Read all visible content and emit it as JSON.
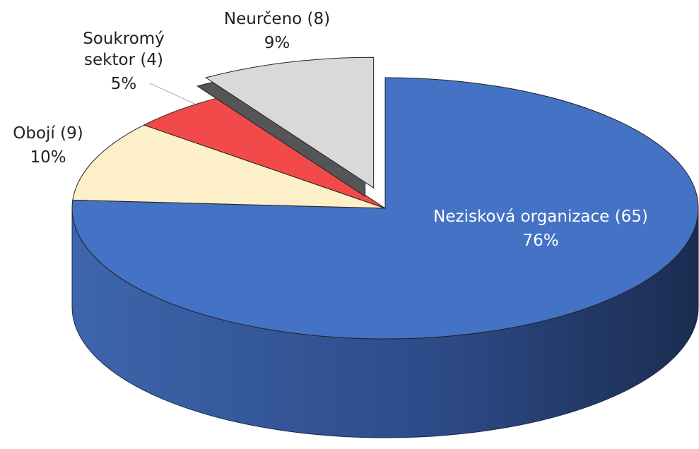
{
  "chart_data": {
    "type": "pie",
    "categories": [
      "Nezisková organizace (65)",
      "Obojí (9)",
      "Soukromý sektor (4)",
      "Neurčeno (8)"
    ],
    "values": [
      76,
      10,
      5,
      9
    ],
    "value_labels": [
      "76%",
      "10%",
      "5%",
      "9%"
    ],
    "colors": [
      "#4472c4",
      "#fdefc8",
      "#f24a4a",
      "#d9d9d9"
    ]
  }
}
